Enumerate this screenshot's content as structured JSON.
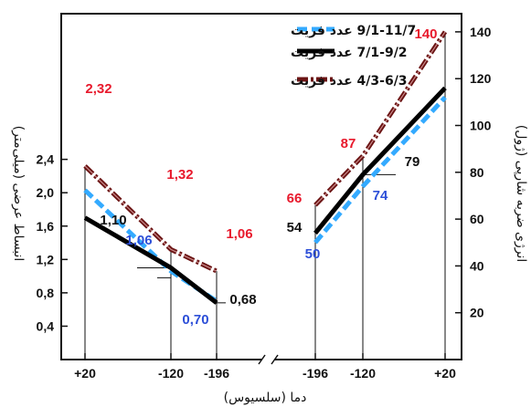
{
  "chart_data": {
    "type": "line",
    "title": "",
    "xlabel": "دما (سلسیوس)",
    "ylabel_left": "انبساط عرضی (میلی‌متر)",
    "ylabel_right": "انرژی ضربه شارپی (ژول)",
    "x_ticks_left": [
      "+20",
      "-120",
      "-196"
    ],
    "x_ticks_right": [
      "-196",
      "-120",
      "+20"
    ],
    "ylim_left": [
      0,
      2.8
    ],
    "ylim_right": [
      0,
      145
    ],
    "y_ticks_left": [
      "0,4",
      "0,8",
      "1,2",
      "1,6",
      "2,0",
      "2,4"
    ],
    "y_ticks_right": [
      "20",
      "40",
      "60",
      "80",
      "100",
      "120",
      "140"
    ],
    "grid": false,
    "legend_position": "top-left",
    "colors": {
      "red": "#e8192c",
      "blue": "#2d4fd8"
    },
    "legend": [
      {
        "text": "9/1-11/7 عدد فریت",
        "color": "#33aaff",
        "style": "dashed"
      },
      {
        "text": "7/1-9/2 عدد فریت",
        "color": "#000000",
        "style": "solid"
      },
      {
        "text": "4/3-6/3 عدد فریت",
        "color": "#6b1414",
        "style": "dashdot"
      }
    ],
    "lateral_expansion": {
      "x": [
        "+20",
        "-120",
        "-196"
      ],
      "series": [
        {
          "name": "9/1-11/7 عدد فریت",
          "values": [
            2.03,
            1.06,
            0.7
          ],
          "labels": [
            "",
            "1,06",
            "0,70"
          ],
          "label_color": "#2d4fd8"
        },
        {
          "name": "7/1-9/2 عدد فریت",
          "values": [
            1.7,
            1.1,
            0.68
          ],
          "labels": [
            "",
            "1,10",
            "0,68"
          ],
          "label_color": "#111111"
        },
        {
          "name": "4/3-6/3 عدد فریت",
          "values": [
            2.32,
            1.32,
            1.06
          ],
          "labels": [
            "2,32",
            "1,32",
            "1,06"
          ],
          "label_color": "#e8192c"
        }
      ]
    },
    "impact_energy": {
      "x": [
        "-196",
        "-120",
        "+20"
      ],
      "series": [
        {
          "name": "9/1-11/7 عدد فریت",
          "values": [
            50,
            74,
            112
          ],
          "labels": [
            "50",
            "74",
            ""
          ],
          "label_color": "#2d4fd8"
        },
        {
          "name": "7/1-9/2 عدد فریت",
          "values": [
            54,
            79,
            116
          ],
          "labels": [
            "54",
            "79",
            ""
          ],
          "label_color": "#111111"
        },
        {
          "name": "4/3-6/3 عدد فریت",
          "values": [
            66,
            87,
            140
          ],
          "labels": [
            "66",
            "87",
            "140"
          ],
          "label_color": "#e8192c"
        }
      ]
    }
  }
}
